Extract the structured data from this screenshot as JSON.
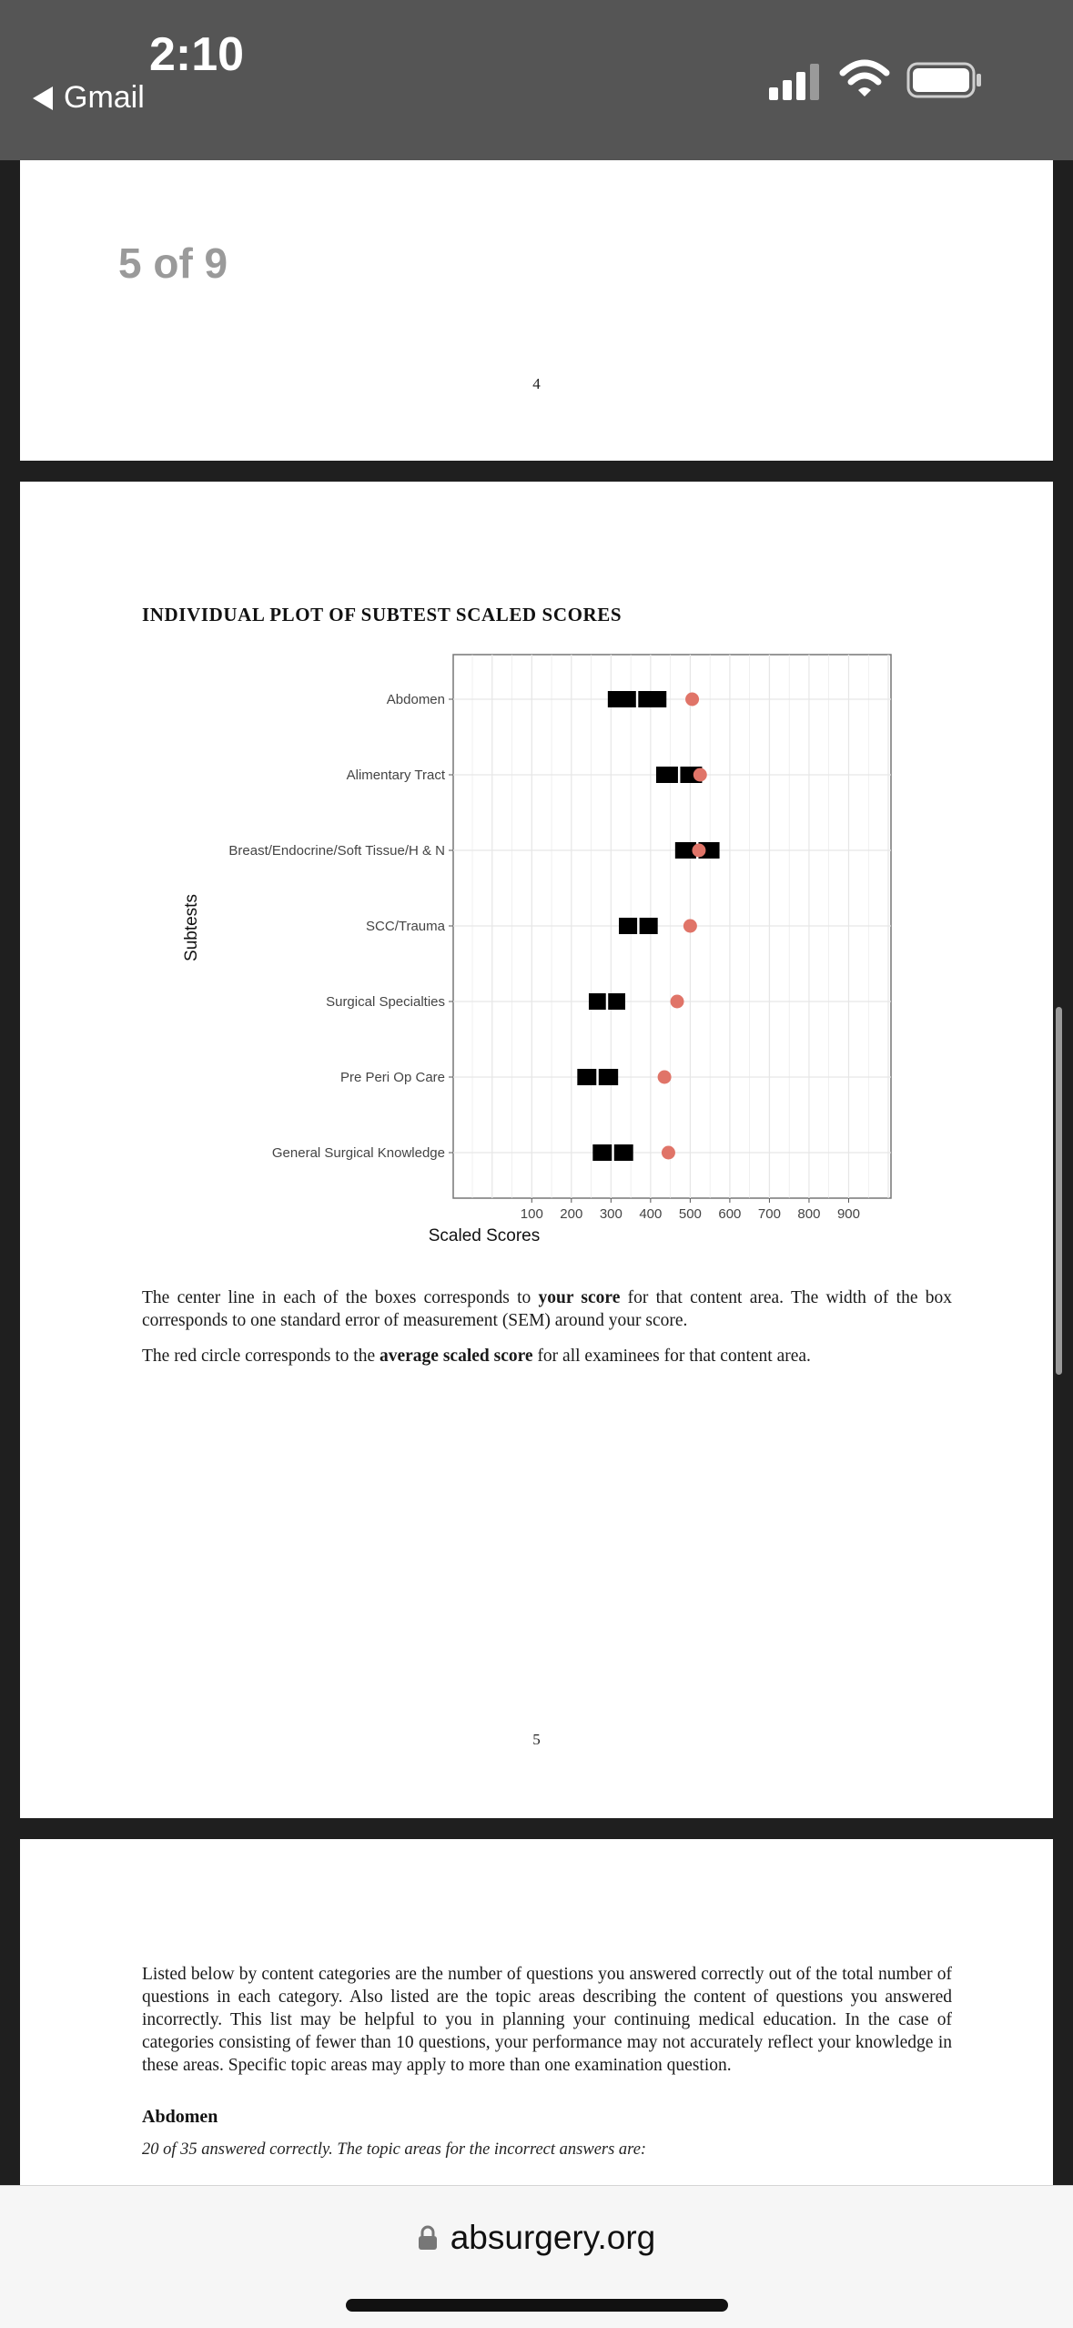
{
  "status_bar": {
    "time": "2:10",
    "back_app": "Gmail",
    "icons": [
      "signal-icon",
      "wifi-icon",
      "battery-icon"
    ]
  },
  "viewer": {
    "page_counter": "5 of 9"
  },
  "pages": {
    "first": {
      "page_number": "4"
    },
    "second": {
      "title": "INDIVIDUAL PLOT OF SUBTEST SCALED SCORES",
      "para1_a": "The center line in each of the boxes corresponds to ",
      "para1_bold": "your score",
      "para1_b": " for that content area. The width of the box corresponds to one standard error of measurement (SEM) around your score.",
      "para2_a": "The red circle corresponds to the ",
      "para2_bold": "average scaled score",
      "para2_b": " for all examinees for that content area.",
      "page_number": "5"
    },
    "third": {
      "paragraph": "Listed below by content categories are the number of questions you answered correctly out of the total number of questions in each category. Also listed are the topic areas describing the content of questions you answered incorrectly. This list may be helpful to you in planning your continuing medical education. In the case of categories consisting of fewer than 10 questions, your performance may not accurately reflect your knowledge in these areas. Specific topic areas may apply to more than one examination question.",
      "category_heading": "Abdomen",
      "category_subtext": "20 of 35 answered correctly. The topic areas for the incorrect answers are:"
    }
  },
  "chart_data": {
    "type": "scatter",
    "title": "INDIVIDUAL PLOT OF SUBTEST SCALED SCORES",
    "xlabel": "Scaled Scores",
    "ylabel": "Subtests",
    "x_ticks": [
      100,
      200,
      300,
      400,
      500,
      600,
      700,
      800,
      900
    ],
    "xlim": [
      -50,
      1000
    ],
    "grid": true,
    "categories": [
      "Abdomen",
      "Alimentary Tract",
      "Breast/Endocrine/Soft Tissue/H & N",
      "SCC/Trauma",
      "Surgical Specialties",
      "Pre Peri Op Care",
      "General Surgical Knowledge"
    ],
    "series": [
      {
        "name": "your score",
        "values": [
          366,
          472,
          518,
          369,
          290,
          266,
          305
        ],
        "sem_low": [
          292,
          414,
          462,
          320,
          244,
          215,
          254
        ],
        "sem_high": [
          440,
          530,
          574,
          418,
          336,
          318,
          356
        ]
      },
      {
        "name": "average scaled score",
        "values": [
          505,
          525,
          522,
          500,
          467,
          435,
          445
        ]
      }
    ],
    "colors": {
      "box": "#000000",
      "average_circle": "#e07468",
      "grid": "#e6e6e6",
      "panel_border": "#777777"
    }
  },
  "browser": {
    "url": "absurgery.org"
  }
}
